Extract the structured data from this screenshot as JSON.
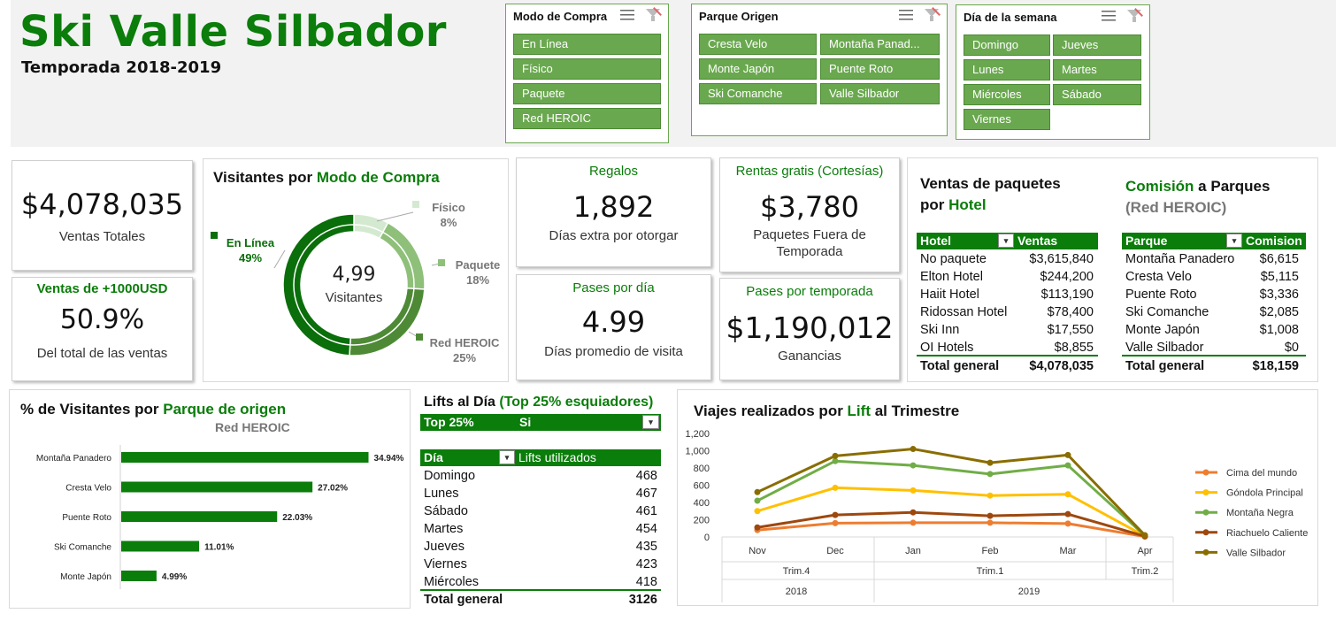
{
  "header": {
    "title": "Ski Valle Silbador",
    "subtitle": "Temporada 2018-2019"
  },
  "slicers": {
    "modo": {
      "title": "Modo de Compra",
      "items": [
        "En Línea",
        "Físico",
        "Paquete",
        "Red HEROIC"
      ]
    },
    "parque": {
      "title": "Parque Origen",
      "items": [
        "Cresta Velo",
        "Montaña Panad...",
        "Monte Japón",
        "Puente Roto",
        "Ski Comanche",
        "Valle Silbador"
      ]
    },
    "dia": {
      "title": "Día de la semana",
      "items": [
        "Domingo",
        "Jueves",
        "Lunes",
        "Martes",
        "Miércoles",
        "Sábado",
        "Viernes"
      ]
    }
  },
  "kpis": {
    "ventas_totales": {
      "value": "$4,078,035",
      "label": "Ventas Totales"
    },
    "ventas_1000": {
      "title": "Ventas de +1000USD",
      "value": "50.9%",
      "label": "Del total de las ventas"
    },
    "regalos": {
      "title": "Regalos",
      "value": "1,892",
      "label": "Días extra por otorgar"
    },
    "pases_dia": {
      "title": "Pases por día",
      "value": "4.99",
      "label": "Días promedio de visita"
    },
    "rentas": {
      "title": "Rentas gratis (Cortesías)",
      "value": "$3,780",
      "label1": "Paquetes Fuera de",
      "label2": "Temporada"
    },
    "pases_temporada": {
      "title": "Pases por temporada",
      "value": "$1,190,012",
      "label": "Ganancias"
    }
  },
  "donut": {
    "title_a": "Visitantes por ",
    "title_b": "Modo de Compra",
    "center_value": "4,99",
    "center_label": "Visitantes",
    "slices": [
      {
        "name": "En Línea",
        "pct_label": "49%",
        "value": 49,
        "color": "#0a6e0a"
      },
      {
        "name": "Red HEROIC",
        "pct_label": "25%",
        "value": 25,
        "color": "#4e8a36"
      },
      {
        "name": "Paquete",
        "pct_label": "18%",
        "value": 18,
        "color": "#8fc07a"
      },
      {
        "name": "Físico",
        "pct_label": "8%",
        "value": 8,
        "color": "#d4ead0"
      }
    ]
  },
  "hotel_table": {
    "title_a": "Ventas de paquetes",
    "title_b": "por ",
    "title_c": "Hotel",
    "headers": [
      "Hotel",
      "Ventas"
    ],
    "rows": [
      [
        "No paquete",
        "$3,615,840"
      ],
      [
        "Elton Hotel",
        "$244,200"
      ],
      [
        "Haiit Hotel",
        "$113,190"
      ],
      [
        "Ridossan Hotel",
        "$78,400"
      ],
      [
        "Ski Inn",
        "$17,550"
      ],
      [
        "OI Hotels",
        "$8,855"
      ]
    ],
    "total": [
      "Total general",
      "$4,078,035"
    ]
  },
  "comision_table": {
    "title_a": "Comisión",
    "title_b": " a Parques",
    "title_c": "(Red HEROIC)",
    "headers": [
      "Parque",
      "Comision"
    ],
    "rows": [
      [
        "Montaña Panadero",
        "$6,615"
      ],
      [
        "Cresta Velo",
        "$5,115"
      ],
      [
        "Puente Roto",
        "$3,336"
      ],
      [
        "Ski Comanche",
        "$2,085"
      ],
      [
        "Monte Japón",
        "$1,008"
      ],
      [
        "Valle Silbador",
        "$0"
      ]
    ],
    "total": [
      "Total general",
      "$18,159"
    ]
  },
  "lifts": {
    "title_a": "Lifts al Día ",
    "title_b": "(Top 25% esquiadores)",
    "filter_label": "Top 25%",
    "filter_value": "Si",
    "headers": [
      "Día",
      "Lifts utilizados"
    ],
    "rows": [
      [
        "Domingo",
        "468"
      ],
      [
        "Lunes",
        "467"
      ],
      [
        "Sábado",
        "461"
      ],
      [
        "Martes",
        "454"
      ],
      [
        "Jueves",
        "435"
      ],
      [
        "Viernes",
        "423"
      ],
      [
        "Miércoles",
        "418"
      ]
    ],
    "total": [
      "Total general",
      "3126"
    ]
  },
  "bar_section": {
    "title_a": "% de Visitantes por ",
    "title_b": "Parque de origen",
    "subtitle": "Red HEROIC"
  },
  "line_section": {
    "title_a": "Viajes realizados por ",
    "title_b": "Lift",
    "title_c": " al Trimestre"
  },
  "chart_data": [
    {
      "type": "bar",
      "orientation": "horizontal",
      "subtitle": "Red HEROIC",
      "categories": [
        "Montaña Panadero",
        "Cresta Velo",
        "Puente Roto",
        "Ski Comanche",
        "Monte Japón"
      ],
      "values": [
        34.94,
        27.02,
        22.03,
        11.01,
        4.99
      ],
      "value_labels": [
        "34.94%",
        "27.02%",
        "22.03%",
        "11.01%",
        "4.99%"
      ],
      "color": "#0a7d0a",
      "xlim": [
        0,
        40
      ]
    },
    {
      "type": "line",
      "x": [
        "Nov",
        "Dec",
        "Jan",
        "Feb",
        "Mar",
        "Apr"
      ],
      "quarters": [
        "Trim.4",
        "Trim.1",
        "Trim.2"
      ],
      "years": [
        "2018",
        "2019"
      ],
      "ylim": [
        0,
        1200
      ],
      "yticks": [
        "0",
        "200",
        "400",
        "600",
        "800",
        "1,000",
        "1,200"
      ],
      "legend": "right",
      "series": [
        {
          "name": "Cima del mundo",
          "color": "#ed7d31",
          "values": [
            80,
            160,
            165,
            165,
            155,
            5
          ]
        },
        {
          "name": "Góndola Principal",
          "color": "#ffc000",
          "values": [
            300,
            570,
            540,
            480,
            495,
            10
          ]
        },
        {
          "name": "Montaña Negra",
          "color": "#70ad47",
          "values": [
            420,
            880,
            830,
            730,
            830,
            15
          ]
        },
        {
          "name": "Riachuelo Caliente",
          "color": "#9e480e",
          "values": [
            110,
            255,
            285,
            245,
            265,
            8
          ]
        },
        {
          "name": "Valle Silbador",
          "color": "#8a6d00",
          "values": [
            520,
            940,
            1020,
            860,
            950,
            20
          ]
        }
      ]
    }
  ]
}
